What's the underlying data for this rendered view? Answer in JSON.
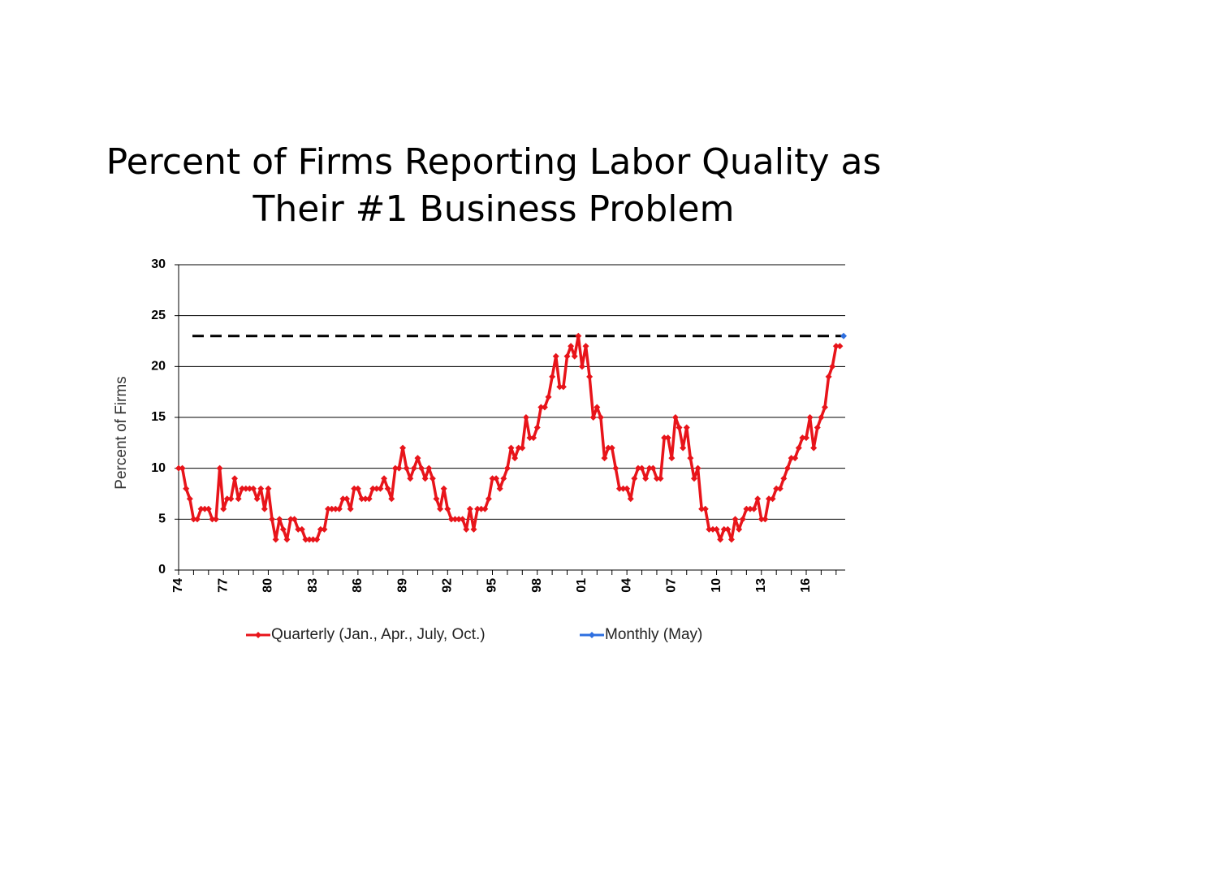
{
  "chart_data": {
    "type": "line",
    "title": [
      "Percent of Firms Reporting Labor Quality as",
      "Their #1 Business Problem"
    ],
    "y_label": "Percent of Firms",
    "categories": [
      "74",
      null,
      null,
      null,
      null,
      null,
      null,
      null,
      null,
      null,
      null,
      null,
      "77",
      null,
      null,
      null,
      null,
      null,
      null,
      null,
      null,
      null,
      null,
      null,
      "80",
      null,
      null,
      null,
      null,
      null,
      null,
      null,
      null,
      null,
      null,
      null,
      "83",
      null,
      null,
      null,
      null,
      null,
      null,
      null,
      null,
      null,
      null,
      null,
      "86",
      null,
      null,
      null,
      null,
      null,
      null,
      null,
      null,
      null,
      null,
      null,
      "89",
      null,
      null,
      null,
      null,
      null,
      null,
      null,
      null,
      null,
      null,
      null,
      "92",
      null,
      null,
      null,
      null,
      null,
      null,
      null,
      null,
      null,
      null,
      null,
      "95",
      null,
      null,
      null,
      null,
      null,
      null,
      null,
      null,
      null,
      null,
      null,
      "98",
      null,
      null,
      null,
      null,
      null,
      null,
      null,
      null,
      null,
      null,
      null,
      "01",
      null,
      null,
      null,
      null,
      null,
      null,
      null,
      null,
      null,
      null,
      null,
      "04",
      null,
      null,
      null,
      null,
      null,
      null,
      null,
      null,
      null,
      null,
      null,
      "07",
      null,
      null,
      null,
      null,
      null,
      null,
      null,
      null,
      null,
      null,
      null,
      "10",
      null,
      null,
      null,
      null,
      null,
      null,
      null,
      null,
      null,
      null,
      null,
      "13",
      null,
      null,
      null,
      null,
      null,
      null,
      null,
      null,
      null,
      null,
      null,
      "16",
      null,
      null,
      null,
      null,
      null,
      null,
      null,
      null,
      null,
      null
    ],
    "series": [
      {
        "name": "Quarterly (Jan., Apr., July, Oct.)",
        "color": "#e8141a",
        "values": [
          10,
          10,
          8,
          7,
          5,
          5,
          6,
          6,
          6,
          5,
          5,
          10,
          6,
          7,
          7,
          9,
          7,
          8,
          8,
          8,
          8,
          7,
          8,
          6,
          8,
          5,
          3,
          5,
          4,
          3,
          5,
          5,
          4,
          4,
          3,
          3,
          3,
          3,
          4,
          4,
          6,
          6,
          6,
          6,
          7,
          7,
          6,
          8,
          8,
          7,
          7,
          7,
          8,
          8,
          8,
          9,
          8,
          7,
          10,
          10,
          12,
          10,
          9,
          10,
          11,
          10,
          9,
          10,
          9,
          7,
          6,
          8,
          6,
          5,
          5,
          5,
          5,
          4,
          6,
          4,
          6,
          6,
          6,
          7,
          9,
          9,
          8,
          9,
          10,
          12,
          11,
          12,
          12,
          15,
          13,
          13,
          14,
          16,
          16,
          17,
          19,
          21,
          18,
          18,
          21,
          22,
          21,
          23,
          20,
          22,
          19,
          15,
          16,
          15,
          11,
          12,
          12,
          10,
          8,
          8,
          8,
          7,
          9,
          10,
          10,
          9,
          10,
          10,
          9,
          9,
          13,
          13,
          11,
          15,
          14,
          12,
          14,
          11,
          9,
          10,
          6,
          6,
          4,
          4,
          4,
          3,
          4,
          4,
          3,
          5,
          4,
          5,
          6,
          6,
          6,
          7,
          5,
          5,
          7,
          7,
          8,
          8,
          9,
          10,
          11,
          11,
          12,
          13,
          13,
          15,
          12,
          14,
          15,
          16,
          19,
          20,
          22,
          22,
          null
        ]
      },
      {
        "name": "Monthly (May)",
        "color": "#2e6fe0",
        "values": [
          null,
          null,
          null,
          null,
          null,
          null,
          null,
          null,
          null,
          null,
          null,
          null,
          null,
          null,
          null,
          null,
          null,
          null,
          null,
          null,
          null,
          null,
          null,
          null,
          null,
          null,
          null,
          null,
          null,
          null,
          null,
          null,
          null,
          null,
          null,
          null,
          null,
          null,
          null,
          null,
          null,
          null,
          null,
          null,
          null,
          null,
          null,
          null,
          null,
          null,
          null,
          null,
          null,
          null,
          null,
          null,
          null,
          null,
          null,
          null,
          null,
          null,
          null,
          null,
          null,
          null,
          null,
          null,
          null,
          null,
          null,
          null,
          null,
          null,
          null,
          null,
          null,
          null,
          null,
          null,
          null,
          null,
          null,
          null,
          null,
          null,
          null,
          null,
          null,
          null,
          null,
          null,
          null,
          null,
          null,
          null,
          null,
          null,
          null,
          null,
          null,
          null,
          null,
          null,
          null,
          null,
          null,
          null,
          null,
          null,
          null,
          null,
          null,
          null,
          null,
          null,
          null,
          null,
          null,
          null,
          null,
          null,
          null,
          null,
          null,
          null,
          null,
          null,
          null,
          null,
          null,
          null,
          null,
          null,
          null,
          null,
          null,
          null,
          null,
          null,
          null,
          null,
          null,
          null,
          null,
          null,
          null,
          null,
          null,
          null,
          null,
          null,
          null,
          null,
          null,
          null,
          null,
          null,
          null,
          null,
          null,
          null,
          null,
          null,
          null,
          null,
          null,
          null,
          null,
          null,
          null,
          null,
          null,
          null,
          null,
          null,
          null,
          null,
          23
        ]
      }
    ],
    "reference_line": {
      "value": 23,
      "color": "#000000",
      "style": "dashed"
    },
    "ylim": [
      0,
      30
    ],
    "yticks": [
      0,
      5,
      10,
      15,
      20,
      25,
      30
    ],
    "grid": true,
    "legend": "bottom"
  }
}
